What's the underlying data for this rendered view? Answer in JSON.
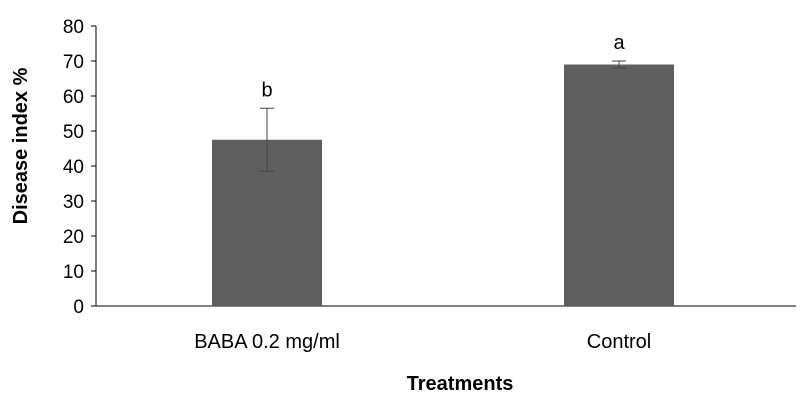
{
  "chart_data": {
    "type": "bar",
    "categories": [
      "BABA 0.2 mg/ml",
      "Control"
    ],
    "values": [
      47.5,
      69
    ],
    "errors": [
      9,
      1
    ],
    "significance_letters": [
      "b",
      "a"
    ],
    "xlabel": "Treatments",
    "ylabel": "Disease index %",
    "ylim": [
      0,
      80
    ],
    "yticks": [
      0,
      10,
      20,
      30,
      40,
      50,
      60,
      70,
      80
    ],
    "bar_color": "#5f5f5f",
    "grid": false,
    "legend": false
  }
}
